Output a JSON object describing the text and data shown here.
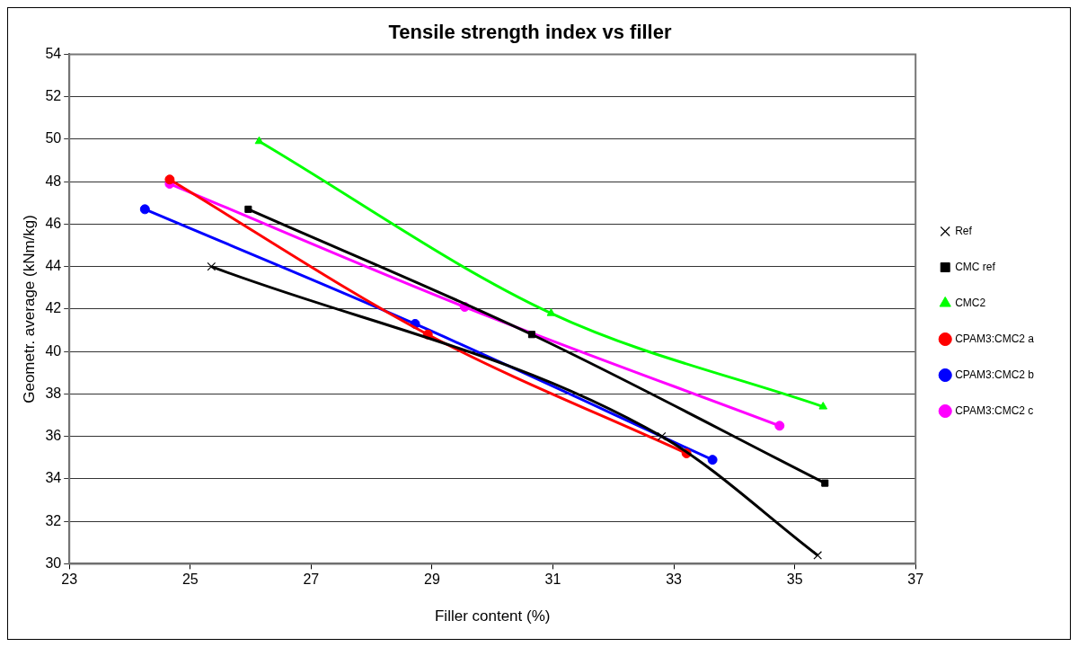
{
  "chart_data": {
    "type": "line",
    "title": "Tensile strength index vs filler",
    "xlabel": "Filler content (%)",
    "ylabel": "Geometr. average (kNm/kg)",
    "xlim": [
      23,
      37
    ],
    "xticks": [
      23,
      25,
      27,
      29,
      31,
      33,
      35,
      37
    ],
    "ylim": [
      30,
      54
    ],
    "yticks": [
      30,
      32,
      34,
      36,
      38,
      40,
      42,
      44,
      46,
      48,
      50,
      52,
      54
    ],
    "grid": "y",
    "legend": "right",
    "line_style": "solid",
    "series": [
      {
        "name": "Ref",
        "color": "#000000",
        "marker": "cross",
        "x": [
          25.35,
          32.8,
          35.38
        ],
        "values": [
          44.0,
          36.0,
          30.4
        ]
      },
      {
        "name": "CMC ref",
        "color": "#000000",
        "marker": "square",
        "x": [
          25.96,
          30.65,
          35.5
        ],
        "values": [
          46.7,
          40.8,
          33.8
        ]
      },
      {
        "name": "CMC2",
        "color": "#00ff00",
        "marker": "triangle",
        "x": [
          26.14,
          30.97,
          35.47
        ],
        "values": [
          49.9,
          41.8,
          37.4
        ]
      },
      {
        "name": "CPAM3:CMC2 a",
        "color": "#ff0000",
        "marker": "circle",
        "x": [
          24.66,
          28.93,
          33.21
        ],
        "values": [
          48.1,
          40.8,
          35.2
        ]
      },
      {
        "name": "CPAM3:CMC2 b",
        "color": "#0000ff",
        "marker": "circle",
        "x": [
          24.25,
          28.72,
          33.64
        ],
        "values": [
          46.7,
          41.3,
          34.9
        ]
      },
      {
        "name": "CPAM3:CMC2 c",
        "color": "#ff00ff",
        "marker": "circle",
        "x": [
          24.66,
          29.54,
          34.75
        ],
        "values": [
          47.9,
          42.1,
          36.5
        ]
      }
    ]
  }
}
